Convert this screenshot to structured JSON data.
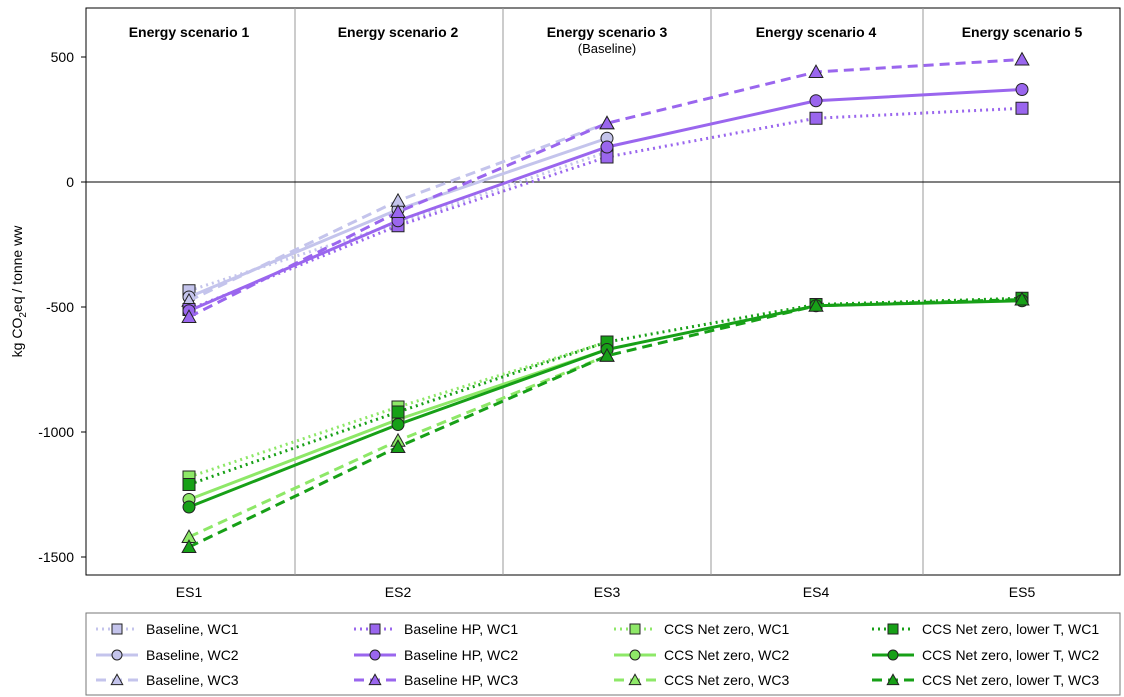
{
  "chart_data": {
    "type": "line",
    "ylabel_parts": [
      "kg CO",
      "2",
      "eq / tonne ww"
    ],
    "categories": [
      "ES1",
      "ES2",
      "ES3",
      "ES4",
      "ES5"
    ],
    "yticks": [
      500,
      0,
      -500,
      -1000,
      -1500
    ],
    "ylim": [
      -1560,
      700
    ],
    "panels": [
      {
        "title": "Energy scenario 1",
        "subtitle": ""
      },
      {
        "title": "Energy scenario 2",
        "subtitle": ""
      },
      {
        "title": "Energy scenario 3",
        "subtitle": "(Baseline)"
      },
      {
        "title": "Energy scenario 4",
        "subtitle": ""
      },
      {
        "title": "Energy scenario 5",
        "subtitle": ""
      }
    ],
    "series": [
      {
        "name": "Baseline, WC1",
        "color": "#c4c4ec",
        "dash": "dot",
        "marker": "square",
        "values": [
          -435,
          -165,
          120,
          null,
          null
        ]
      },
      {
        "name": "Baseline, WC2",
        "color": "#c4c4ec",
        "dash": "solid",
        "marker": "circle",
        "values": [
          -460,
          -110,
          175,
          null,
          null
        ]
      },
      {
        "name": "Baseline, WC3",
        "color": "#c4c4ec",
        "dash": "dash",
        "marker": "triangle",
        "values": [
          -475,
          -75,
          235,
          null,
          null
        ]
      },
      {
        "name": "Baseline HP, WC1",
        "color": "#9a66ee",
        "dash": "dot",
        "marker": "square",
        "values": [
          -510,
          -175,
          100,
          255,
          295
        ]
      },
      {
        "name": "Baseline HP, WC2",
        "color": "#9a66ee",
        "dash": "solid",
        "marker": "circle",
        "values": [
          -515,
          -155,
          140,
          325,
          370
        ]
      },
      {
        "name": "Baseline HP, WC3",
        "color": "#9a66ee",
        "dash": "dash",
        "marker": "triangle",
        "values": [
          -540,
          -120,
          235,
          440,
          490
        ]
      },
      {
        "name": "CCS Net zero, WC1",
        "color": "#8ee868",
        "dash": "dot",
        "marker": "square",
        "values": [
          -1180,
          -900,
          -640,
          null,
          null
        ]
      },
      {
        "name": "CCS Net zero, WC2",
        "color": "#8ee868",
        "dash": "solid",
        "marker": "circle",
        "values": [
          -1270,
          -950,
          -670,
          null,
          null
        ]
      },
      {
        "name": "CCS Net zero, WC3",
        "color": "#8ee868",
        "dash": "dash",
        "marker": "triangle",
        "values": [
          -1420,
          -1035,
          -695,
          null,
          null
        ]
      },
      {
        "name": "CCS Net zero, lower T, WC1",
        "color": "#17a017",
        "dash": "dot",
        "marker": "square",
        "values": [
          -1210,
          -920,
          -640,
          -490,
          -465
        ]
      },
      {
        "name": "CCS Net zero, lower T, WC2",
        "color": "#17a017",
        "dash": "solid",
        "marker": "circle",
        "values": [
          -1300,
          -970,
          -670,
          -495,
          -475
        ]
      },
      {
        "name": "CCS Net zero, lower T, WC3",
        "color": "#17a017",
        "dash": "dash",
        "marker": "triangle",
        "values": [
          -1460,
          -1060,
          -695,
          -495,
          -470
        ]
      }
    ],
    "legend": {
      "placement": "bottom",
      "columns": 4
    },
    "grid": {
      "vertical_panel_separators": true,
      "zero_line": true
    }
  }
}
